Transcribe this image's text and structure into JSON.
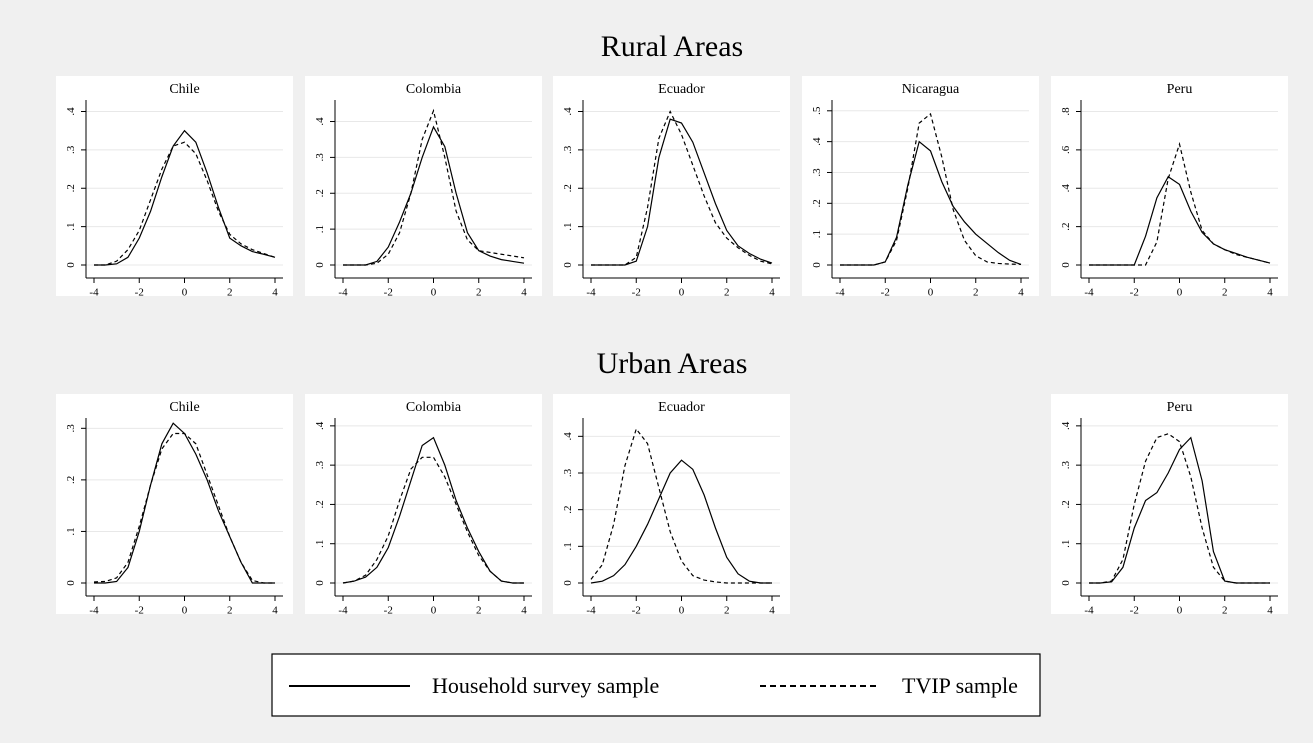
{
  "sections": [
    "Rural Areas",
    "Urban Areas"
  ],
  "chart_data": [
    {
      "type": "line",
      "title": "Chile",
      "x": [
        -4,
        -3.5,
        -3,
        -2.5,
        -2,
        -1.5,
        -1,
        -0.5,
        0,
        0.5,
        1,
        1.5,
        2,
        2.5,
        3,
        3.5,
        4
      ],
      "xlim": [
        -4,
        4
      ],
      "xticks": [
        -4,
        -2,
        0,
        2,
        4
      ],
      "ylim": [
        0,
        0.43
      ],
      "yticks": [
        0,
        {
          "value": 0.1,
          "label": ".1"
        },
        {
          "value": 0.2,
          "label": ".2"
        },
        {
          "value": 0.3,
          "label": ".3"
        },
        {
          "value": 0.4,
          "label": ".4"
        }
      ],
      "grid": true,
      "series": [
        {
          "name": "Household survey sample",
          "color": "#000000",
          "line_style": "solid",
          "values": [
            0,
            0,
            0.003,
            0.02,
            0.07,
            0.14,
            0.23,
            0.31,
            0.35,
            0.32,
            0.24,
            0.15,
            0.07,
            0.05,
            0.035,
            0.028,
            0.02
          ]
        },
        {
          "name": "TVIP sample",
          "color": "#000000",
          "line_style": "dashed",
          "values": [
            0,
            0,
            0.01,
            0.04,
            0.09,
            0.17,
            0.25,
            0.31,
            0.32,
            0.29,
            0.22,
            0.14,
            0.08,
            0.055,
            0.04,
            0.03,
            0.02
          ]
        }
      ]
    },
    {
      "type": "line",
      "title": "Colombia",
      "x": [
        -4,
        -3.5,
        -3,
        -2.5,
        -2,
        -1.5,
        -1,
        -0.5,
        0,
        0.5,
        1,
        1.5,
        2,
        2.5,
        3,
        3.5,
        4
      ],
      "xlim": [
        -4,
        4
      ],
      "xticks": [
        -4,
        -2,
        0,
        2,
        4
      ],
      "ylim": [
        0,
        0.46
      ],
      "yticks": [
        0,
        {
          "value": 0.1,
          "label": ".1"
        },
        {
          "value": 0.2,
          "label": ".2"
        },
        {
          "value": 0.3,
          "label": ".3"
        },
        {
          "value": 0.4,
          "label": ".4"
        }
      ],
      "grid": true,
      "series": [
        {
          "name": "Household survey sample",
          "color": "#000000",
          "line_style": "solid",
          "values": [
            0,
            0,
            0,
            0.01,
            0.05,
            0.12,
            0.2,
            0.3,
            0.385,
            0.33,
            0.2,
            0.09,
            0.04,
            0.025,
            0.015,
            0.01,
            0.005
          ]
        },
        {
          "name": "TVIP sample",
          "color": "#000000",
          "line_style": "dashed",
          "values": [
            0,
            0,
            0,
            0.005,
            0.03,
            0.09,
            0.2,
            0.35,
            0.43,
            0.3,
            0.15,
            0.07,
            0.04,
            0.035,
            0.03,
            0.025,
            0.02
          ]
        }
      ]
    },
    {
      "type": "line",
      "title": "Ecuador",
      "x": [
        -4,
        -3.5,
        -3,
        -2.5,
        -2,
        -1.5,
        -1,
        -0.5,
        0,
        0.5,
        1,
        1.5,
        2,
        2.5,
        3,
        3.5,
        4
      ],
      "xlim": [
        -4,
        4
      ],
      "xticks": [
        -4,
        -2,
        0,
        2,
        4
      ],
      "ylim": [
        0,
        0.43
      ],
      "yticks": [
        0,
        {
          "value": 0.1,
          "label": ".1"
        },
        {
          "value": 0.2,
          "label": ".2"
        },
        {
          "value": 0.3,
          "label": ".3"
        },
        {
          "value": 0.4,
          "label": ".4"
        }
      ],
      "grid": true,
      "series": [
        {
          "name": "Household survey sample",
          "color": "#000000",
          "line_style": "solid",
          "values": [
            0,
            0,
            0,
            0,
            0.01,
            0.1,
            0.28,
            0.38,
            0.37,
            0.32,
            0.24,
            0.16,
            0.09,
            0.05,
            0.03,
            0.015,
            0.005
          ]
        },
        {
          "name": "TVIP sample",
          "color": "#000000",
          "line_style": "dashed",
          "values": [
            0,
            0,
            0,
            0,
            0.02,
            0.15,
            0.33,
            0.4,
            0.34,
            0.26,
            0.18,
            0.11,
            0.07,
            0.045,
            0.025,
            0.01,
            0.003
          ]
        }
      ]
    },
    {
      "type": "line",
      "title": "Nicaragua",
      "x": [
        -4,
        -3.5,
        -3,
        -2.5,
        -2,
        -1.5,
        -1,
        -0.5,
        0,
        0.5,
        1,
        1.5,
        2,
        2.5,
        3,
        3.5,
        4
      ],
      "xlim": [
        -4,
        4
      ],
      "xticks": [
        -4,
        -2,
        0,
        2,
        4
      ],
      "ylim": [
        0,
        0.535
      ],
      "yticks": [
        0,
        {
          "value": 0.1,
          "label": ".1"
        },
        {
          "value": 0.2,
          "label": ".2"
        },
        {
          "value": 0.3,
          "label": ".3"
        },
        {
          "value": 0.4,
          "label": ".4"
        },
        {
          "value": 0.5,
          "label": ".5"
        }
      ],
      "grid": true,
      "series": [
        {
          "name": "Household survey sample",
          "color": "#000000",
          "line_style": "solid",
          "values": [
            0,
            0,
            0,
            0,
            0.01,
            0.09,
            0.26,
            0.4,
            0.37,
            0.27,
            0.19,
            0.14,
            0.1,
            0.07,
            0.04,
            0.015,
            0.002
          ]
        },
        {
          "name": "TVIP sample",
          "color": "#000000",
          "line_style": "dashed",
          "values": [
            0,
            0,
            0,
            0,
            0.01,
            0.08,
            0.25,
            0.46,
            0.49,
            0.35,
            0.18,
            0.08,
            0.03,
            0.01,
            0.005,
            0.003,
            0.002
          ]
        }
      ]
    },
    {
      "type": "line",
      "title": "Peru",
      "x": [
        -4,
        -3.5,
        -3,
        -2.5,
        -2,
        -1.5,
        -1,
        -0.5,
        0,
        0.5,
        1,
        1.5,
        2,
        2.5,
        3,
        3.5,
        4
      ],
      "xlim": [
        -4,
        4
      ],
      "xticks": [
        -4,
        -2,
        0,
        2,
        4
      ],
      "ylim": [
        0,
        0.86
      ],
      "yticks": [
        0,
        {
          "value": 0.2,
          "label": ".2"
        },
        {
          "value": 0.4,
          "label": ".4"
        },
        {
          "value": 0.6,
          "label": ".6"
        },
        {
          "value": 0.8,
          "label": ".8"
        }
      ],
      "grid": true,
      "series": [
        {
          "name": "Household survey sample",
          "color": "#000000",
          "line_style": "solid",
          "values": [
            0,
            0,
            0,
            0,
            0,
            0.15,
            0.35,
            0.46,
            0.42,
            0.28,
            0.17,
            0.11,
            0.08,
            0.06,
            0.04,
            0.025,
            0.01
          ]
        },
        {
          "name": "TVIP sample",
          "color": "#000000",
          "line_style": "dashed",
          "values": [
            0,
            0,
            0,
            0,
            0,
            0,
            0.12,
            0.45,
            0.63,
            0.38,
            0.18,
            0.11,
            0.08,
            0.055,
            0.04,
            0.025,
            0.01
          ]
        }
      ]
    },
    {
      "type": "line",
      "title": "Chile",
      "x": [
        -4,
        -3.5,
        -3,
        -2.5,
        -2,
        -1.5,
        -1,
        -0.5,
        0,
        0.5,
        1,
        1.5,
        2,
        2.5,
        3,
        3.5,
        4
      ],
      "xlim": [
        -4,
        4
      ],
      "xticks": [
        -4,
        -2,
        0,
        2,
        4
      ],
      "ylim": [
        0,
        0.32
      ],
      "yticks": [
        0,
        {
          "value": 0.1,
          "label": ".1"
        },
        {
          "value": 0.2,
          "label": ".2"
        },
        {
          "value": 0.3,
          "label": ".3"
        }
      ],
      "grid": true,
      "series": [
        {
          "name": "Household survey sample",
          "color": "#000000",
          "line_style": "solid",
          "values": [
            0,
            0,
            0.003,
            0.03,
            0.1,
            0.19,
            0.27,
            0.31,
            0.29,
            0.25,
            0.2,
            0.14,
            0.09,
            0.04,
            0,
            0,
            0
          ]
        },
        {
          "name": "TVIP sample",
          "color": "#000000",
          "line_style": "dashed",
          "values": [
            0.002,
            0.003,
            0.01,
            0.04,
            0.11,
            0.19,
            0.26,
            0.29,
            0.29,
            0.27,
            0.21,
            0.15,
            0.09,
            0.04,
            0.005,
            0,
            0
          ]
        }
      ]
    },
    {
      "type": "line",
      "title": "Colombia",
      "x": [
        -4,
        -3.5,
        -3,
        -2.5,
        -2,
        -1.5,
        -1,
        -0.5,
        0,
        0.5,
        1,
        1.5,
        2,
        2.5,
        3,
        3.5,
        4
      ],
      "xlim": [
        -4,
        4
      ],
      "xticks": [
        -4,
        -2,
        0,
        2,
        4
      ],
      "ylim": [
        0,
        0.42
      ],
      "yticks": [
        0,
        {
          "value": 0.1,
          "label": ".1"
        },
        {
          "value": 0.2,
          "label": ".2"
        },
        {
          "value": 0.3,
          "label": ".3"
        },
        {
          "value": 0.4,
          "label": ".4"
        }
      ],
      "grid": true,
      "series": [
        {
          "name": "Household survey sample",
          "color": "#000000",
          "line_style": "solid",
          "values": [
            0,
            0.005,
            0.015,
            0.04,
            0.09,
            0.17,
            0.26,
            0.35,
            0.37,
            0.3,
            0.21,
            0.14,
            0.08,
            0.03,
            0.005,
            0,
            0
          ]
        },
        {
          "name": "TVIP sample",
          "color": "#000000",
          "line_style": "dashed",
          "values": [
            0,
            0.005,
            0.02,
            0.06,
            0.12,
            0.21,
            0.29,
            0.32,
            0.32,
            0.27,
            0.2,
            0.13,
            0.07,
            0.03,
            0.005,
            0,
            0
          ]
        }
      ]
    },
    {
      "type": "line",
      "title": "Ecuador",
      "x": [
        -4,
        -3.5,
        -3,
        -2.5,
        -2,
        -1.5,
        -1,
        -0.5,
        0,
        0.5,
        1,
        1.5,
        2,
        2.5,
        3,
        3.5,
        4
      ],
      "xlim": [
        -4,
        4
      ],
      "xticks": [
        -4,
        -2,
        0,
        2,
        4
      ],
      "ylim": [
        0,
        0.45
      ],
      "yticks": [
        0,
        {
          "value": 0.1,
          "label": ".1"
        },
        {
          "value": 0.2,
          "label": ".2"
        },
        {
          "value": 0.3,
          "label": ".3"
        },
        {
          "value": 0.4,
          "label": ".4"
        }
      ],
      "grid": true,
      "series": [
        {
          "name": "Household survey sample",
          "color": "#000000",
          "line_style": "solid",
          "values": [
            0,
            0.005,
            0.02,
            0.05,
            0.1,
            0.16,
            0.23,
            0.3,
            0.335,
            0.31,
            0.24,
            0.15,
            0.07,
            0.025,
            0.005,
            0,
            0
          ]
        },
        {
          "name": "TVIP sample",
          "color": "#000000",
          "line_style": "dashed",
          "values": [
            0.01,
            0.05,
            0.16,
            0.32,
            0.42,
            0.38,
            0.26,
            0.14,
            0.06,
            0.02,
            0.008,
            0.003,
            0,
            0,
            0,
            0,
            0
          ]
        }
      ]
    },
    {
      "type": "line",
      "title": "Peru",
      "x": [
        -4,
        -3.5,
        -3,
        -2.5,
        -2,
        -1.5,
        -1,
        -0.5,
        0,
        0.5,
        1,
        1.5,
        2,
        2.5,
        3,
        3.5,
        4
      ],
      "xlim": [
        -4,
        4
      ],
      "xticks": [
        -4,
        -2,
        0,
        2,
        4
      ],
      "ylim": [
        0,
        0.42
      ],
      "yticks": [
        0,
        {
          "value": 0.1,
          "label": ".1"
        },
        {
          "value": 0.2,
          "label": ".2"
        },
        {
          "value": 0.3,
          "label": ".3"
        },
        {
          "value": 0.4,
          "label": ".4"
        }
      ],
      "grid": true,
      "series": [
        {
          "name": "Household survey sample",
          "color": "#000000",
          "line_style": "solid",
          "values": [
            0,
            0,
            0.003,
            0.04,
            0.14,
            0.21,
            0.23,
            0.28,
            0.34,
            0.37,
            0.26,
            0.08,
            0.005,
            0,
            0,
            0,
            0
          ]
        },
        {
          "name": "TVIP sample",
          "color": "#000000",
          "line_style": "dashed",
          "values": [
            0,
            0,
            0.005,
            0.06,
            0.2,
            0.31,
            0.37,
            0.38,
            0.36,
            0.27,
            0.14,
            0.04,
            0.005,
            0,
            0,
            0,
            0
          ]
        }
      ]
    }
  ]
}
